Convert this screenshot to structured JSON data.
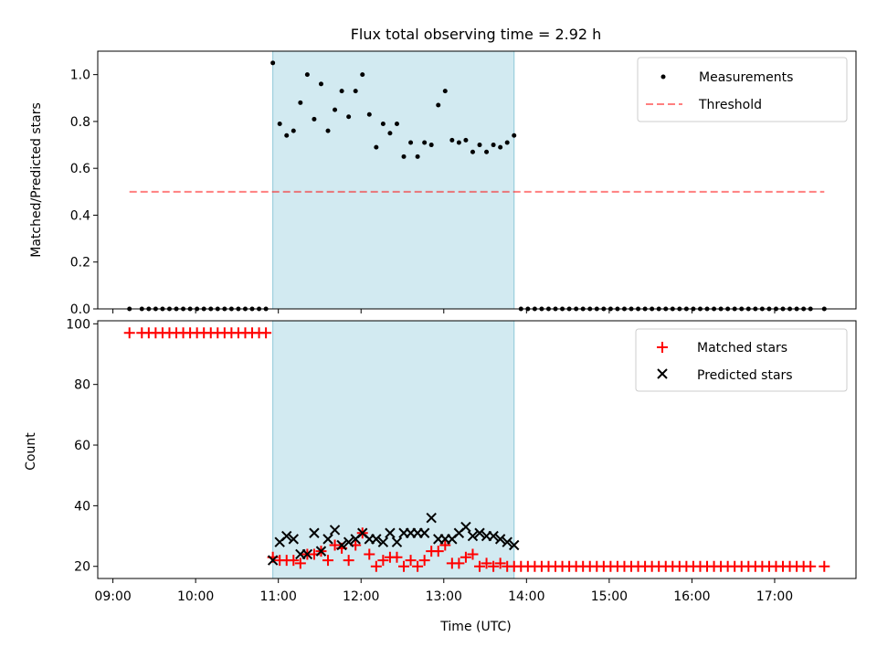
{
  "title": "Flux total observing time = 2.92 h",
  "colors": {
    "shade": "#add8e6",
    "measurement": "#000000",
    "threshold": "#ff0000",
    "matched": "#ff0000",
    "predicted": "#000000"
  },
  "chart_data": [
    {
      "type": "scatter",
      "ylabel": "Matched/Predicted stars",
      "ylim": [
        0,
        1.1
      ],
      "yticks": [
        "0.0",
        "0.2",
        "0.4",
        "0.6",
        "0.8",
        "1.0"
      ],
      "xlim": [
        "08:49",
        "17:59"
      ],
      "shaded_interval": [
        "10:56",
        "13:51"
      ],
      "legend": {
        "placement": "top-right",
        "measurements": "Measurements",
        "threshold": "Threshold"
      },
      "threshold": {
        "value": 0.5,
        "x": [
          "09:12",
          "17:36"
        ]
      },
      "series": [
        {
          "name": "Measurements",
          "style": "dot",
          "points": [
            [
              "09:12",
              0
            ],
            [
              "09:21",
              0
            ],
            [
              "09:26",
              0
            ],
            [
              "09:31",
              0
            ],
            [
              "09:36",
              0
            ],
            [
              "09:41",
              0
            ],
            [
              "09:46",
              0
            ],
            [
              "09:51",
              0
            ],
            [
              "09:56",
              0
            ],
            [
              "10:01",
              0
            ],
            [
              "10:06",
              0
            ],
            [
              "10:11",
              0
            ],
            [
              "10:16",
              0
            ],
            [
              "10:21",
              0
            ],
            [
              "10:26",
              0
            ],
            [
              "10:31",
              0
            ],
            [
              "10:36",
              0
            ],
            [
              "10:41",
              0
            ],
            [
              "10:46",
              0
            ],
            [
              "10:51",
              0
            ],
            [
              "10:56",
              1.05
            ],
            [
              "11:01",
              0.79
            ],
            [
              "11:06",
              0.74
            ],
            [
              "11:11",
              0.76
            ],
            [
              "11:16",
              0.88
            ],
            [
              "11:21",
              1.0
            ],
            [
              "11:26",
              0.81
            ],
            [
              "11:31",
              0.96
            ],
            [
              "11:36",
              0.76
            ],
            [
              "11:41",
              0.85
            ],
            [
              "11:46",
              0.93
            ],
            [
              "11:51",
              0.82
            ],
            [
              "11:56",
              0.93
            ],
            [
              "12:01",
              1.0
            ],
            [
              "12:06",
              0.83
            ],
            [
              "12:11",
              0.69
            ],
            [
              "12:16",
              0.79
            ],
            [
              "12:21",
              0.75
            ],
            [
              "12:26",
              0.79
            ],
            [
              "12:31",
              0.65
            ],
            [
              "12:36",
              0.71
            ],
            [
              "12:41",
              0.65
            ],
            [
              "12:46",
              0.71
            ],
            [
              "12:51",
              0.7
            ],
            [
              "12:56",
              0.87
            ],
            [
              "13:01",
              0.93
            ],
            [
              "13:06",
              0.72
            ],
            [
              "13:11",
              0.71
            ],
            [
              "13:16",
              0.72
            ],
            [
              "13:21",
              0.67
            ],
            [
              "13:26",
              0.7
            ],
            [
              "13:31",
              0.67
            ],
            [
              "13:36",
              0.7
            ],
            [
              "13:41",
              0.69
            ],
            [
              "13:46",
              0.71
            ],
            [
              "13:51",
              0.74
            ],
            [
              "13:56",
              0
            ],
            [
              "14:01",
              0
            ],
            [
              "14:06",
              0
            ],
            [
              "14:11",
              0
            ],
            [
              "14:16",
              0
            ],
            [
              "14:21",
              0
            ],
            [
              "14:26",
              0
            ],
            [
              "14:31",
              0
            ],
            [
              "14:36",
              0
            ],
            [
              "14:41",
              0
            ],
            [
              "14:46",
              0
            ],
            [
              "14:51",
              0
            ],
            [
              "14:56",
              0
            ],
            [
              "15:01",
              0
            ],
            [
              "15:06",
              0
            ],
            [
              "15:11",
              0
            ],
            [
              "15:16",
              0
            ],
            [
              "15:21",
              0
            ],
            [
              "15:26",
              0
            ],
            [
              "15:31",
              0
            ],
            [
              "15:36",
              0
            ],
            [
              "15:41",
              0
            ],
            [
              "15:46",
              0
            ],
            [
              "15:51",
              0
            ],
            [
              "15:56",
              0
            ],
            [
              "16:01",
              0
            ],
            [
              "16:06",
              0
            ],
            [
              "16:11",
              0
            ],
            [
              "16:16",
              0
            ],
            [
              "16:21",
              0
            ],
            [
              "16:26",
              0
            ],
            [
              "16:31",
              0
            ],
            [
              "16:36",
              0
            ],
            [
              "16:41",
              0
            ],
            [
              "16:46",
              0
            ],
            [
              "16:51",
              0
            ],
            [
              "16:56",
              0
            ],
            [
              "17:01",
              0
            ],
            [
              "17:06",
              0
            ],
            [
              "17:11",
              0
            ],
            [
              "17:16",
              0
            ],
            [
              "17:21",
              0
            ],
            [
              "17:26",
              0
            ],
            [
              "17:36",
              0
            ]
          ]
        }
      ]
    },
    {
      "type": "scatter",
      "xlabel": "Time (UTC)",
      "ylabel": "Count",
      "ylim": [
        16,
        101
      ],
      "yticks": [
        "20",
        "40",
        "60",
        "80",
        "100"
      ],
      "xlim": [
        "08:49",
        "17:59"
      ],
      "xticks": [
        "09:00",
        "10:00",
        "11:00",
        "12:00",
        "13:00",
        "14:00",
        "15:00",
        "16:00",
        "17:00"
      ],
      "shaded_interval": [
        "10:56",
        "13:51"
      ],
      "legend": {
        "placement": "top-right",
        "matched": "Matched stars",
        "predicted": "Predicted stars"
      },
      "series": [
        {
          "name": "Matched stars",
          "marker": "+",
          "points": [
            [
              "09:12",
              97
            ],
            [
              "09:21",
              97
            ],
            [
              "09:26",
              97
            ],
            [
              "09:31",
              97
            ],
            [
              "09:36",
              97
            ],
            [
              "09:41",
              97
            ],
            [
              "09:46",
              97
            ],
            [
              "09:51",
              97
            ],
            [
              "09:56",
              97
            ],
            [
              "10:01",
              97
            ],
            [
              "10:06",
              97
            ],
            [
              "10:11",
              97
            ],
            [
              "10:16",
              97
            ],
            [
              "10:21",
              97
            ],
            [
              "10:26",
              97
            ],
            [
              "10:31",
              97
            ],
            [
              "10:36",
              97
            ],
            [
              "10:41",
              97
            ],
            [
              "10:46",
              97
            ],
            [
              "10:51",
              97
            ],
            [
              "10:56",
              23
            ],
            [
              "11:01",
              22
            ],
            [
              "11:06",
              22
            ],
            [
              "11:11",
              22
            ],
            [
              "11:16",
              21
            ],
            [
              "11:21",
              24
            ],
            [
              "11:26",
              24
            ],
            [
              "11:31",
              25
            ],
            [
              "11:36",
              22
            ],
            [
              "11:41",
              27
            ],
            [
              "11:46",
              26
            ],
            [
              "11:51",
              22
            ],
            [
              "11:56",
              27
            ],
            [
              "12:01",
              31
            ],
            [
              "12:06",
              24
            ],
            [
              "12:11",
              20
            ],
            [
              "12:16",
              22
            ],
            [
              "12:21",
              23
            ],
            [
              "12:26",
              23
            ],
            [
              "12:31",
              20
            ],
            [
              "12:36",
              22
            ],
            [
              "12:41",
              20
            ],
            [
              "12:46",
              22
            ],
            [
              "12:51",
              25
            ],
            [
              "12:56",
              25
            ],
            [
              "13:01",
              27
            ],
            [
              "13:06",
              21
            ],
            [
              "13:11",
              21
            ],
            [
              "13:16",
              23
            ],
            [
              "13:21",
              24
            ],
            [
              "13:26",
              20
            ],
            [
              "13:31",
              21
            ],
            [
              "13:36",
              20
            ],
            [
              "13:41",
              21
            ],
            [
              "13:46",
              20
            ],
            [
              "13:51",
              20
            ],
            [
              "13:56",
              20
            ],
            [
              "14:01",
              20
            ],
            [
              "14:06",
              20
            ],
            [
              "14:11",
              20
            ],
            [
              "14:16",
              20
            ],
            [
              "14:21",
              20
            ],
            [
              "14:26",
              20
            ],
            [
              "14:31",
              20
            ],
            [
              "14:36",
              20
            ],
            [
              "14:41",
              20
            ],
            [
              "14:46",
              20
            ],
            [
              "14:51",
              20
            ],
            [
              "14:56",
              20
            ],
            [
              "15:01",
              20
            ],
            [
              "15:06",
              20
            ],
            [
              "15:11",
              20
            ],
            [
              "15:16",
              20
            ],
            [
              "15:21",
              20
            ],
            [
              "15:26",
              20
            ],
            [
              "15:31",
              20
            ],
            [
              "15:36",
              20
            ],
            [
              "15:41",
              20
            ],
            [
              "15:46",
              20
            ],
            [
              "15:51",
              20
            ],
            [
              "15:56",
              20
            ],
            [
              "16:01",
              20
            ],
            [
              "16:06",
              20
            ],
            [
              "16:11",
              20
            ],
            [
              "16:16",
              20
            ],
            [
              "16:21",
              20
            ],
            [
              "16:26",
              20
            ],
            [
              "16:31",
              20
            ],
            [
              "16:36",
              20
            ],
            [
              "16:41",
              20
            ],
            [
              "16:46",
              20
            ],
            [
              "16:51",
              20
            ],
            [
              "16:56",
              20
            ],
            [
              "17:01",
              20
            ],
            [
              "17:06",
              20
            ],
            [
              "17:11",
              20
            ],
            [
              "17:16",
              20
            ],
            [
              "17:21",
              20
            ],
            [
              "17:26",
              20
            ],
            [
              "17:36",
              20
            ]
          ]
        },
        {
          "name": "Predicted stars",
          "marker": "x",
          "points": [
            [
              "10:56",
              22
            ],
            [
              "11:01",
              28
            ],
            [
              "11:06",
              30
            ],
            [
              "11:11",
              29
            ],
            [
              "11:16",
              24
            ],
            [
              "11:21",
              24
            ],
            [
              "11:26",
              31
            ],
            [
              "11:31",
              25
            ],
            [
              "11:36",
              29
            ],
            [
              "11:41",
              32
            ],
            [
              "11:46",
              27
            ],
            [
              "11:51",
              28
            ],
            [
              "11:56",
              29
            ],
            [
              "12:01",
              31
            ],
            [
              "12:06",
              29
            ],
            [
              "12:11",
              29
            ],
            [
              "12:16",
              28
            ],
            [
              "12:21",
              31
            ],
            [
              "12:26",
              28
            ],
            [
              "12:31",
              31
            ],
            [
              "12:36",
              31
            ],
            [
              "12:41",
              31
            ],
            [
              "12:46",
              31
            ],
            [
              "12:51",
              36
            ],
            [
              "12:56",
              29
            ],
            [
              "13:01",
              29
            ],
            [
              "13:06",
              29
            ],
            [
              "13:11",
              31
            ],
            [
              "13:16",
              33
            ],
            [
              "13:21",
              30
            ],
            [
              "13:26",
              31
            ],
            [
              "13:31",
              30
            ],
            [
              "13:36",
              30
            ],
            [
              "13:41",
              29
            ],
            [
              "13:46",
              28
            ],
            [
              "13:51",
              27
            ]
          ]
        }
      ]
    }
  ]
}
